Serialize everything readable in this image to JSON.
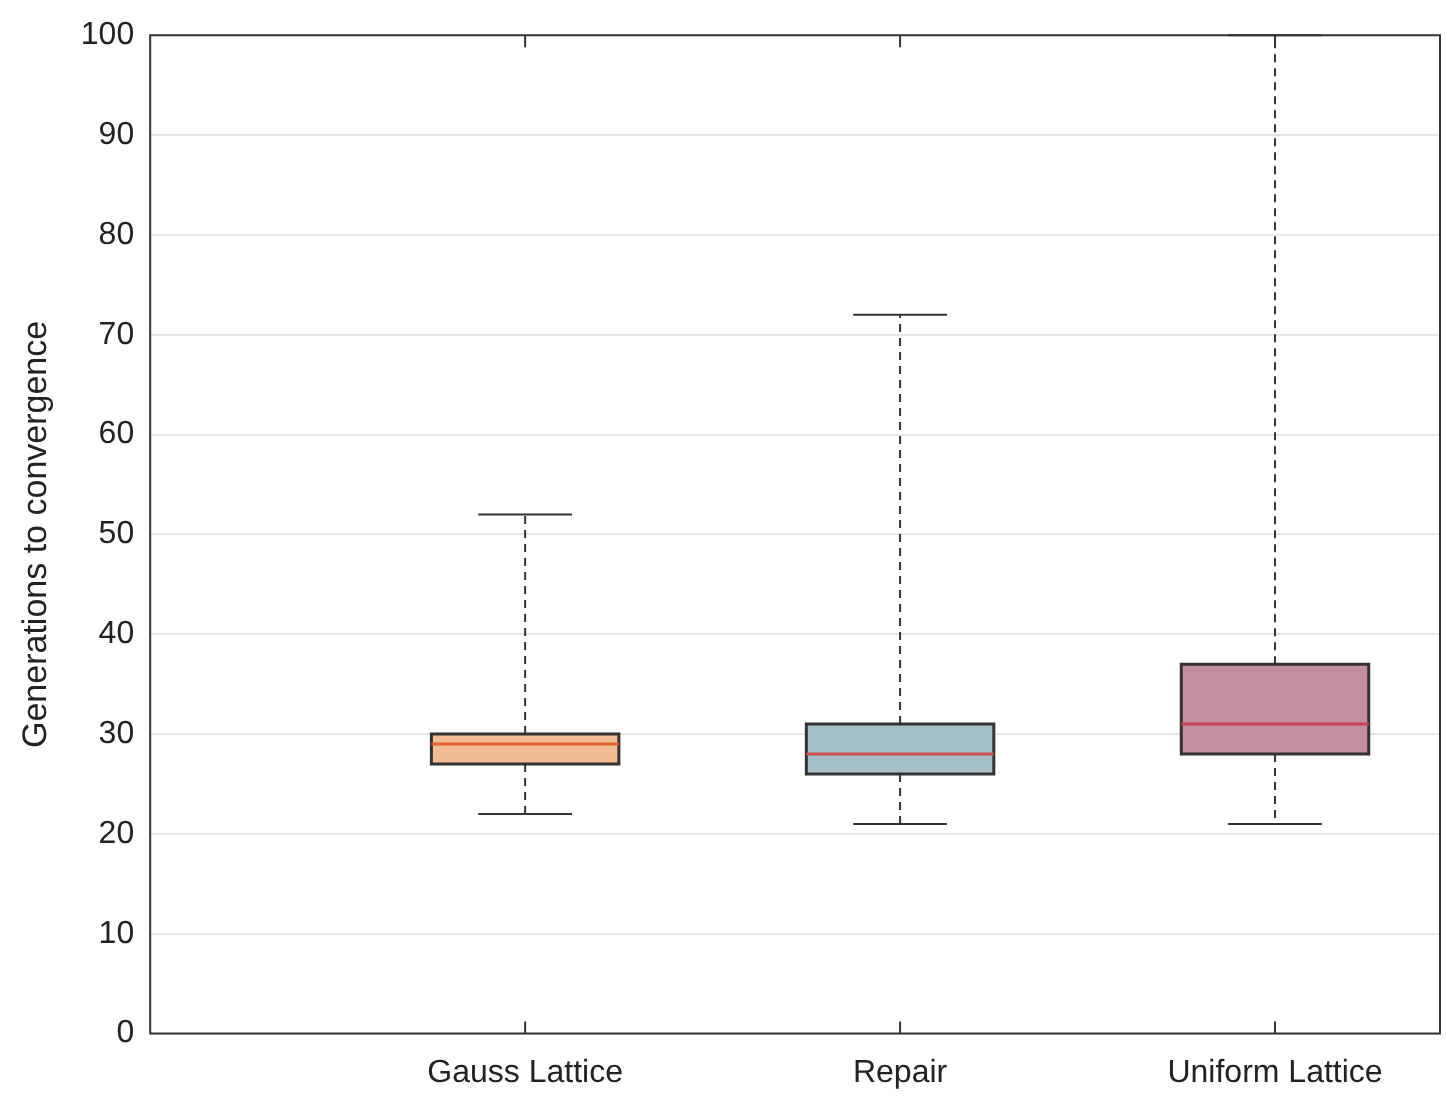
{
  "chart_data": {
    "type": "box",
    "ylabel": "Generations to convergence",
    "categories": [
      "Gauss Lattice",
      "Repair",
      "Uniform Lattice"
    ],
    "series": [
      {
        "colors": [
          "#f0bc94",
          "#a5c0c6",
          "#c38ea0"
        ],
        "boxes": [
          {
            "low": 22,
            "q1": 27,
            "median": 29,
            "q3": 30,
            "high": 52
          },
          {
            "low": 21,
            "q1": 26,
            "median": 28,
            "q3": 31,
            "high": 72
          },
          {
            "low": 21,
            "q1": 28,
            "median": 31,
            "q3": 37,
            "high": 100
          }
        ]
      }
    ],
    "ylim": [
      0,
      100
    ],
    "yticks": [
      0,
      10,
      20,
      30,
      40,
      50,
      60,
      70,
      80,
      90,
      100
    ],
    "grid": "y"
  }
}
